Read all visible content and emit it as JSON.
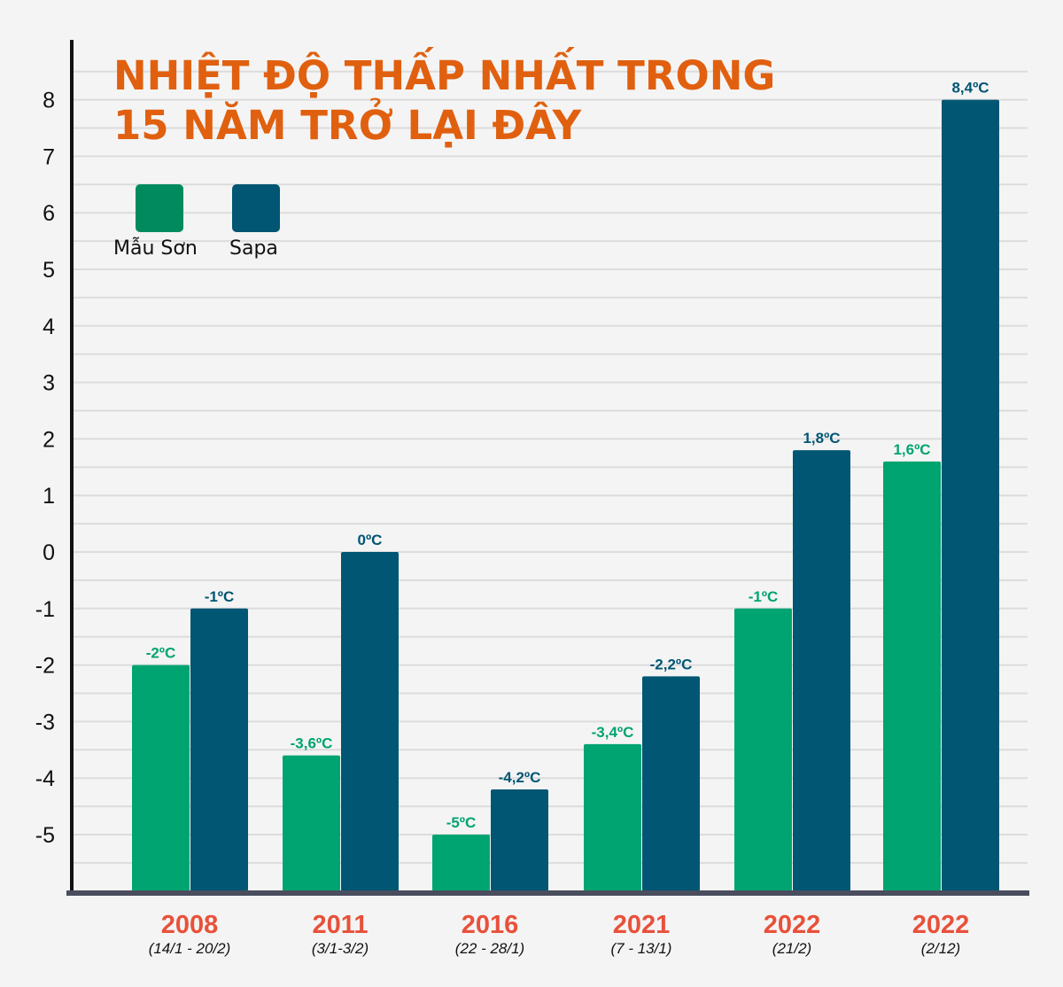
{
  "chart_data": {
    "type": "bar",
    "title": [
      "NHIỆT ĐỘ THẤP NHẤT TRONG",
      "15 NĂM TRỞ LẠI ĐÂY"
    ],
    "categories": [
      "2008",
      "2011",
      "2016",
      "2021",
      "2022",
      "2022"
    ],
    "category_sublabels": [
      "(14/1 - 20/2)",
      "(3/1-3/2)",
      "(22 - 28/1)",
      "(7 - 13/1)",
      "(21/2)",
      "(2/12)"
    ],
    "series": [
      {
        "name": "Mẫu Sơn",
        "color": "#00a470",
        "legend_color": "#008a5e",
        "values": [
          -2,
          -3.6,
          -5,
          -3.4,
          -1,
          1.6
        ],
        "labels": [
          "-2ºC",
          "-3,6ºC",
          "-5ºC",
          "-3,4ºC",
          "-1ºC",
          "1,6ºC"
        ]
      },
      {
        "name": "Sapa",
        "color": "#005673",
        "legend_color": "#005673",
        "values": [
          -1,
          0,
          -4.2,
          -2.2,
          1.8,
          8.4
        ],
        "labels": [
          "-1ºC",
          "0ºC",
          "-4,2ºC",
          "-2,2ºC",
          "1,8ºC",
          "8,4ºC"
        ]
      }
    ],
    "yticks": [
      8,
      7,
      6,
      5,
      4,
      3,
      2,
      1,
      0,
      -1,
      -2,
      -3,
      -4,
      -5
    ],
    "ylim": [
      -6,
      8
    ],
    "grid": true,
    "legend": "top-left",
    "title_color": "#e0600f",
    "category_color": "#e8513a"
  }
}
